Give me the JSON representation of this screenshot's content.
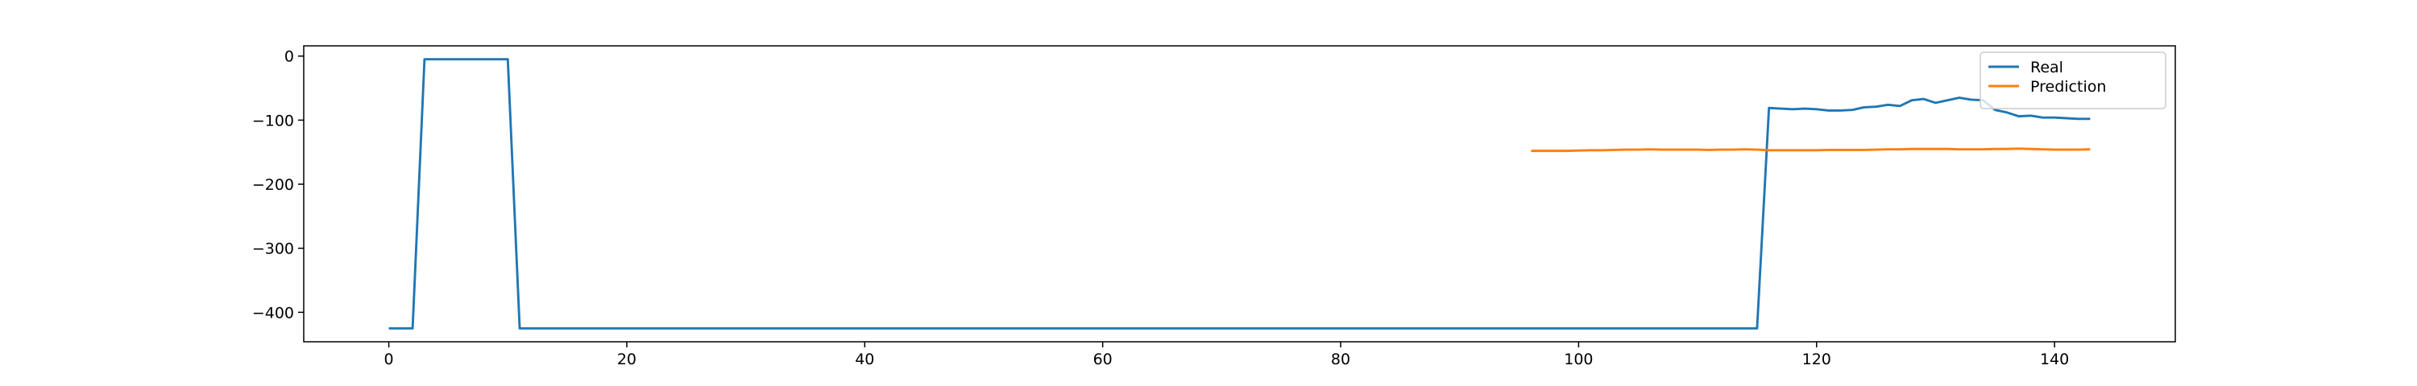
{
  "chart_data": {
    "type": "line",
    "x": [
      0,
      1,
      2,
      3,
      4,
      5,
      6,
      7,
      8,
      9,
      10,
      11,
      12,
      13,
      14,
      15,
      16,
      17,
      18,
      19,
      20,
      21,
      22,
      23,
      24,
      25,
      26,
      27,
      28,
      29,
      30,
      31,
      32,
      33,
      34,
      35,
      36,
      37,
      38,
      39,
      40,
      41,
      42,
      43,
      44,
      45,
      46,
      47,
      48,
      49,
      50,
      51,
      52,
      53,
      54,
      55,
      56,
      57,
      58,
      59,
      60,
      61,
      62,
      63,
      64,
      65,
      66,
      67,
      68,
      69,
      70,
      71,
      72,
      73,
      74,
      75,
      76,
      77,
      78,
      79,
      80,
      81,
      82,
      83,
      84,
      85,
      86,
      87,
      88,
      89,
      90,
      91,
      92,
      93,
      94,
      95,
      96,
      97,
      98,
      99,
      100,
      101,
      102,
      103,
      104,
      105,
      106,
      107,
      108,
      109,
      110,
      111,
      112,
      113,
      114,
      115,
      116,
      117,
      118,
      119,
      120,
      121,
      122,
      123,
      124,
      125,
      126,
      127,
      128,
      129,
      130,
      131,
      132,
      133,
      134,
      135,
      136,
      137,
      138,
      139,
      140,
      141,
      142,
      143
    ],
    "series": [
      {
        "name": "Real",
        "color": "#1f77b4",
        "values": [
          -425,
          -425,
          -425,
          -5,
          -5,
          -5,
          -5,
          -5,
          -5,
          -5,
          -5,
          -425,
          -425,
          -425,
          -425,
          -425,
          -425,
          -425,
          -425,
          -425,
          -425,
          -425,
          -425,
          -425,
          -425,
          -425,
          -425,
          -425,
          -425,
          -425,
          -425,
          -425,
          -425,
          -425,
          -425,
          -425,
          -425,
          -425,
          -425,
          -425,
          -425,
          -425,
          -425,
          -425,
          -425,
          -425,
          -425,
          -425,
          -425,
          -425,
          -425,
          -425,
          -425,
          -425,
          -425,
          -425,
          -425,
          -425,
          -425,
          -425,
          -425,
          -425,
          -425,
          -425,
          -425,
          -425,
          -425,
          -425,
          -425,
          -425,
          -425,
          -425,
          -425,
          -425,
          -425,
          -425,
          -425,
          -425,
          -425,
          -425,
          -425,
          -425,
          -425,
          -425,
          -425,
          -425,
          -425,
          -425,
          -425,
          -425,
          -425,
          -425,
          -425,
          -425,
          -425,
          -425,
          -425,
          -425,
          -425,
          -425,
          -425,
          -425,
          -425,
          -425,
          -425,
          -425,
          -425,
          -425,
          -425,
          -425,
          -425,
          -425,
          -425,
          -425,
          -425,
          -425,
          -81,
          -82,
          -83,
          -82,
          -83,
          -85,
          -85,
          -84,
          -80,
          -79,
          -76,
          -78,
          -69,
          -67,
          -73,
          -69,
          -65,
          -68,
          -69,
          -84,
          -88,
          -94,
          -93,
          -96,
          -96,
          -97,
          -98,
          -98
        ]
      },
      {
        "name": "Prediction",
        "color": "#ff7f0e",
        "values": [
          null,
          null,
          null,
          null,
          null,
          null,
          null,
          null,
          null,
          null,
          null,
          null,
          null,
          null,
          null,
          null,
          null,
          null,
          null,
          null,
          null,
          null,
          null,
          null,
          null,
          null,
          null,
          null,
          null,
          null,
          null,
          null,
          null,
          null,
          null,
          null,
          null,
          null,
          null,
          null,
          null,
          null,
          null,
          null,
          null,
          null,
          null,
          null,
          null,
          null,
          null,
          null,
          null,
          null,
          null,
          null,
          null,
          null,
          null,
          null,
          null,
          null,
          null,
          null,
          null,
          null,
          null,
          null,
          null,
          null,
          null,
          null,
          null,
          null,
          null,
          null,
          null,
          null,
          null,
          null,
          null,
          null,
          null,
          null,
          null,
          null,
          null,
          null,
          null,
          null,
          null,
          null,
          null,
          null,
          null,
          null,
          -148,
          -148,
          -148,
          -148,
          -147.5,
          -147,
          -147,
          -146.5,
          -146,
          -146,
          -145.5,
          -146,
          -146,
          -146,
          -146,
          -146.5,
          -146,
          -146,
          -145.5,
          -146,
          -147,
          -147,
          -147,
          -147,
          -147,
          -146.5,
          -146.5,
          -146.5,
          -146.5,
          -146,
          -145.5,
          -145.5,
          -145,
          -145,
          -145,
          -145,
          -145.5,
          -145.5,
          -145.5,
          -145,
          -145,
          -144.5,
          -145,
          -145.5,
          -146,
          -146,
          -146,
          -145.5
        ]
      }
    ],
    "xlim": [
      -7.15,
      150.15
    ],
    "ylim": [
      -446,
      16
    ],
    "xticks": [
      0,
      20,
      40,
      60,
      80,
      100,
      120,
      140
    ],
    "yticks": [
      0,
      {
        "value": -100,
        "label": "−100"
      },
      {
        "value": -200,
        "label": "−200"
      },
      {
        "value": -300,
        "label": "−300"
      },
      {
        "value": -400,
        "label": "−400"
      }
    ],
    "legend": "upper right"
  }
}
